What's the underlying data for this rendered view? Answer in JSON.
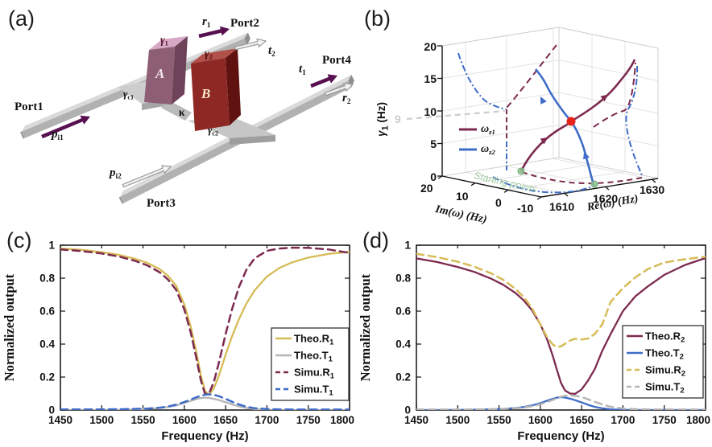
{
  "colors": {
    "maroon": "#7d2a50",
    "blue": "#3f6cc8",
    "yellow": "#d6bb56",
    "gray": "#b5b5b5",
    "red_dot": "#e82418",
    "green": "#8fbf8f",
    "purple_arrow": "#571050",
    "gray_dash": "#cccccc"
  },
  "panel_a": {
    "letter": "(a)",
    "ports": {
      "p1": "Port1",
      "p2": "Port2",
      "p3": "Port3",
      "p4": "Port4"
    },
    "labels": {
      "pi1": {
        "main": "p",
        "sub": "i1"
      },
      "pi2": {
        "main": "p",
        "sub": "i2"
      },
      "r1": {
        "main": "r",
        "sub": "1"
      },
      "r2": {
        "main": "r",
        "sub": "2"
      },
      "t1": {
        "main": "t",
        "sub": "1"
      },
      "t2": {
        "main": "t",
        "sub": "2"
      },
      "gamma1": {
        "main": "γ",
        "sub": "1"
      },
      "gamma2": {
        "main": "γ",
        "sub": "2"
      },
      "gammac1": {
        "main": "γ",
        "sub": "c1"
      },
      "gammac2": {
        "main": "γ",
        "sub": "c2"
      },
      "kappa": "κ",
      "resonatorA": "A",
      "resonatorB": "B"
    }
  },
  "panel_b": {
    "letter": "(b)",
    "zlabel": {
      "main": "γ",
      "sub": "1",
      "unit": " (Hz)"
    },
    "xlabel": "Re(ω) (Hz)",
    "ylabel": "Im(ω) (Hz)",
    "z_ticks": [
      "20",
      "15",
      "10",
      "5",
      "0"
    ],
    "im_ticks": [
      "20",
      "10",
      "0",
      "-10"
    ],
    "re_ticks": [
      "1610",
      "1620",
      "1630"
    ],
    "ep_gamma": "9",
    "legend": [
      {
        "main": "ω",
        "sub": "z1"
      },
      {
        "main": "ω",
        "sub": "z2"
      }
    ],
    "starting": "Starting points"
  },
  "panel_c": {
    "letter": "(c)"
  },
  "panel_d": {
    "letter": "(d)"
  },
  "chart_data": [
    {
      "type": "line",
      "panel": "c",
      "xlabel": "Frequency (Hz)",
      "ylabel": "Normalized output",
      "xlim": [
        1450,
        1800
      ],
      "ylim": [
        0,
        1
      ],
      "xticks": [
        1450,
        1500,
        1550,
        1600,
        1650,
        1700,
        1750,
        1800
      ],
      "xtick_labels": [
        "1450",
        "1500",
        "1550",
        "1600",
        "1650",
        "1700",
        "1750",
        "1800"
      ],
      "yticks": [
        0,
        0.2,
        0.4,
        0.6,
        0.8,
        1
      ],
      "ytick_labels": [
        "0",
        "0.2",
        "0.4",
        "0.6",
        "0.8",
        "1"
      ],
      "x": [
        1450,
        1475,
        1500,
        1520,
        1540,
        1555,
        1570,
        1580,
        1590,
        1600,
        1608,
        1615,
        1620,
        1625,
        1630,
        1636,
        1642,
        1650,
        1658,
        1666,
        1675,
        1685,
        1700,
        1715,
        1730,
        1750,
        1775,
        1800
      ],
      "series": [
        {
          "label_main": "Theo.R",
          "label_sub": "1",
          "color": "#d6bb56",
          "style": "solid",
          "values": [
            0.98,
            0.972,
            0.958,
            0.942,
            0.918,
            0.893,
            0.855,
            0.815,
            0.755,
            0.64,
            0.5,
            0.34,
            0.21,
            0.115,
            0.092,
            0.135,
            0.21,
            0.335,
            0.45,
            0.55,
            0.645,
            0.725,
            0.81,
            0.862,
            0.895,
            0.925,
            0.948,
            0.96
          ]
        },
        {
          "label_main": "Theo.T",
          "label_sub": "1",
          "color": "#b5b5b5",
          "style": "solid",
          "values": [
            0.0,
            0.0,
            0.001,
            0.002,
            0.004,
            0.007,
            0.012,
            0.018,
            0.028,
            0.043,
            0.056,
            0.067,
            0.073,
            0.075,
            0.073,
            0.068,
            0.06,
            0.047,
            0.034,
            0.022,
            0.013,
            0.006,
            0.002,
            0.001,
            0.0,
            0.0,
            0.0,
            0.0
          ]
        },
        {
          "label_main": "Simu.R",
          "label_sub": "1",
          "color": "#7d2a50",
          "style": "dashed",
          "values": [
            0.974,
            0.965,
            0.95,
            0.932,
            0.906,
            0.878,
            0.836,
            0.793,
            0.73,
            0.61,
            0.465,
            0.305,
            0.18,
            0.098,
            0.1,
            0.175,
            0.29,
            0.46,
            0.615,
            0.745,
            0.85,
            0.92,
            0.966,
            0.98,
            0.985,
            0.984,
            0.974,
            0.953
          ]
        },
        {
          "label_main": "Simu.T",
          "label_sub": "1",
          "color": "#3f6cc8",
          "style": "dashed",
          "values": [
            0.004,
            0.004,
            0.004,
            0.005,
            0.007,
            0.009,
            0.014,
            0.021,
            0.032,
            0.049,
            0.064,
            0.078,
            0.087,
            0.093,
            0.095,
            0.092,
            0.084,
            0.068,
            0.05,
            0.034,
            0.02,
            0.011,
            0.006,
            0.004,
            0.003,
            0.003,
            0.003,
            0.003
          ]
        }
      ],
      "legend_position": "right-middle",
      "grid": false
    },
    {
      "type": "line",
      "panel": "d",
      "xlabel": "Frequency (Hz)",
      "ylabel": "Normalized output",
      "xlim": [
        1450,
        1800
      ],
      "ylim": [
        0,
        1
      ],
      "xticks": [
        1450,
        1500,
        1550,
        1600,
        1650,
        1700,
        1750,
        1800
      ],
      "xtick_labels": [
        "1450",
        "1500",
        "1550",
        "1600",
        "1650",
        "1700",
        "1750",
        "1800"
      ],
      "yticks": [
        0,
        0.2,
        0.4,
        0.6,
        0.8,
        1
      ],
      "ytick_labels": [
        "0",
        "0.2",
        "0.4",
        "0.6",
        "0.8",
        "1"
      ],
      "x": [
        1450,
        1475,
        1500,
        1520,
        1540,
        1555,
        1570,
        1580,
        1590,
        1600,
        1608,
        1615,
        1620,
        1625,
        1630,
        1636,
        1642,
        1650,
        1658,
        1666,
        1675,
        1685,
        1700,
        1715,
        1730,
        1750,
        1775,
        1800
      ],
      "series": [
        {
          "label_main": "Theo.R",
          "label_sub": "2",
          "color": "#7d2a50",
          "style": "solid",
          "values": [
            0.92,
            0.898,
            0.868,
            0.838,
            0.798,
            0.76,
            0.71,
            0.665,
            0.605,
            0.52,
            0.43,
            0.33,
            0.245,
            0.165,
            0.118,
            0.1,
            0.098,
            0.125,
            0.18,
            0.25,
            0.36,
            0.46,
            0.6,
            0.69,
            0.75,
            0.82,
            0.88,
            0.922
          ]
        },
        {
          "label_main": "Theo.T",
          "label_sub": "2",
          "color": "#3f6cc8",
          "style": "solid",
          "values": [
            0.0,
            0.0,
            0.001,
            0.002,
            0.004,
            0.007,
            0.012,
            0.018,
            0.028,
            0.042,
            0.056,
            0.068,
            0.075,
            0.078,
            0.075,
            0.069,
            0.06,
            0.046,
            0.031,
            0.019,
            0.01,
            0.004,
            0.001,
            0.0,
            0.0,
            0.0,
            0.0,
            0.0
          ]
        },
        {
          "label_main": "Simu.R",
          "label_sub": "2",
          "color": "#d6bb56",
          "style": "dashed",
          "values": [
            0.948,
            0.928,
            0.9,
            0.87,
            0.83,
            0.79,
            0.735,
            0.685,
            0.618,
            0.52,
            0.442,
            0.398,
            0.382,
            0.386,
            0.402,
            0.422,
            0.432,
            0.428,
            0.434,
            0.462,
            0.52,
            0.655,
            0.74,
            0.805,
            0.855,
            0.895,
            0.915,
            0.93
          ]
        },
        {
          "label_main": "Simu.T",
          "label_sub": "2",
          "color": "#b5b5b5",
          "style": "dashed",
          "values": [
            0.003,
            0.003,
            0.003,
            0.004,
            0.005,
            0.007,
            0.01,
            0.015,
            0.023,
            0.035,
            0.048,
            0.061,
            0.071,
            0.08,
            0.086,
            0.089,
            0.087,
            0.079,
            0.065,
            0.05,
            0.034,
            0.02,
            0.009,
            0.005,
            0.004,
            0.003,
            0.003,
            0.003
          ]
        }
      ],
      "legend_position": "right-middle",
      "grid": false
    },
    {
      "type": "line3d",
      "panel": "b",
      "zlabel": "γ1 (Hz)",
      "xlabel": "Re(ω) (Hz)",
      "ylabel": "Im(ω) (Hz)",
      "xlim": [
        1607,
        1632
      ],
      "ylim": [
        -10,
        20
      ],
      "zlim": [
        0,
        20
      ],
      "xticks": [
        1610,
        1620,
        1630
      ],
      "yticks": [
        20,
        10,
        0,
        -10
      ],
      "zticks": [
        0,
        5,
        10,
        15,
        20
      ],
      "series": [
        {
          "name": "ω_z1",
          "color": "#7d2a50",
          "approx_points_re_im_gamma": [
            [
              1613,
              4,
              0
            ],
            [
              1615,
              2,
              4
            ],
            [
              1617,
              0,
              9
            ],
            [
              1621,
              -1,
              13
            ],
            [
              1628,
              -2,
              18
            ]
          ]
        },
        {
          "name": "ω_z2",
          "color": "#3f6cc8",
          "approx_points_re_im_gamma": [
            [
              1619,
              -7,
              0
            ],
            [
              1618,
              -3,
              4
            ],
            [
              1617,
              0,
              9
            ],
            [
              1614,
              3,
              13
            ],
            [
              1612,
              5,
              16
            ]
          ]
        }
      ],
      "annotations": [
        {
          "text": "9",
          "meaning": "gamma value of exceptional point",
          "color": "#cccccc"
        },
        {
          "text": "Starting points",
          "color": "#a6cfa4"
        },
        {
          "marker": "exceptional-point",
          "color": "#e82418",
          "approx_re_im_gamma": [
            1617,
            0,
            9
          ]
        }
      ],
      "notes": "dashed curves are wall/floor projections of the two eigenfrequency trajectories"
    }
  ]
}
